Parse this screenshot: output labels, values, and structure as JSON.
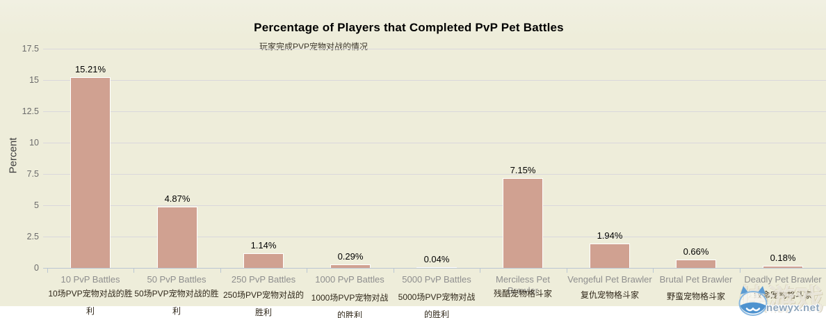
{
  "chart_data": {
    "type": "bar",
    "title": "Percentage of Players that Completed PvP Pet Battles",
    "subtitle_zh": "玩家完成PVP宠物对战的情况",
    "xlabel": "",
    "ylabel": "Percent",
    "ylim": [
      0,
      17.5
    ],
    "yticks": [
      0,
      2.5,
      5,
      7.5,
      10,
      12.5,
      15,
      17.5
    ],
    "ytick_labels": [
      "0",
      "2.5",
      "5",
      "7.5",
      "10",
      "12.5",
      "15",
      "17.5"
    ],
    "grid": true,
    "legend": false,
    "categories": [
      {
        "label_en": "10 PvP Battles",
        "label_zh": "10场PVP宠物对战的胜利"
      },
      {
        "label_en": "50 PvP Battles",
        "label_zh": "50场PVP宠物对战的胜利"
      },
      {
        "label_en": "250 PvP Battles",
        "label_zh": "250场PVP宠物对战的胜利"
      },
      {
        "label_en": "1000 PvP Battles",
        "label_zh": "1000场PVP宠物对战的胜利"
      },
      {
        "label_en": "5000 PvP Battles",
        "label_zh": "5000场PVP宠物对战的胜利"
      },
      {
        "label_en": "Merciless Pet Brawler",
        "label_zh": "残酷宠物格斗家"
      },
      {
        "label_en": "Vengeful Pet Brawler",
        "label_zh": "复仇宠物格斗家"
      },
      {
        "label_en": "Brutal Pet Brawler",
        "label_zh": "野蛮宠物格斗家"
      },
      {
        "label_en": "Deadly Pet Brawler",
        "label_zh": "致命宠物格斗家"
      }
    ],
    "values": [
      15.21,
      4.87,
      1.14,
      0.29,
      0.04,
      7.15,
      1.94,
      0.66,
      0.18
    ],
    "value_labels": [
      "15.21%",
      "4.87%",
      "1.14%",
      "0.29%",
      "0.04%",
      "7.15%",
      "1.94%",
      "0.66%",
      "0.18%"
    ],
    "colors": {
      "bar": "#d0a191",
      "bar_border": "#ffffff",
      "background": "#eeedda",
      "gridline": "#d9d7dc",
      "axis": "#bac6d2",
      "title": "#000000",
      "label_en": "#8e8e8e",
      "label_zh": "#30281a",
      "ytick": "#6b6b6b"
    }
  },
  "watermark": {
    "site": "newyx.net",
    "brand_zh": "快游戏",
    "mascot_color": "#4f93cf"
  }
}
